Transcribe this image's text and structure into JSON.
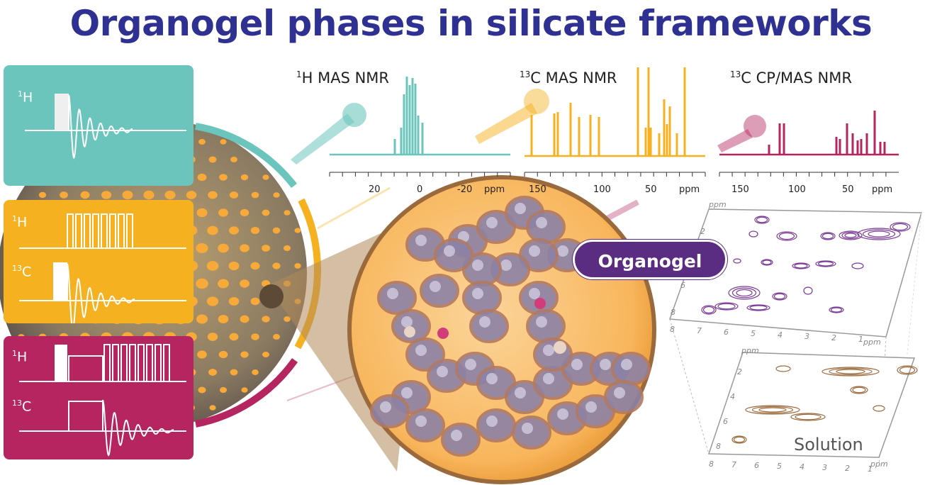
{
  "title": "Organogel phases in silicate frameworks",
  "colors": {
    "title": "#2e3192",
    "teal": "#6cc5bd",
    "orange": "#f5b120",
    "magenta": "#b5255f",
    "purple": "#5a2d82",
    "brown": "#9b6a3c"
  },
  "pulse_panels": [
    {
      "channels": [
        {
          "nucleus_sup": "1",
          "nucleus": "H"
        }
      ]
    },
    {
      "channels": [
        {
          "nucleus_sup": "1",
          "nucleus": "H"
        },
        {
          "nucleus_sup": "13",
          "nucleus": "C"
        }
      ]
    },
    {
      "channels": [
        {
          "nucleus_sup": "1",
          "nucleus": "H"
        },
        {
          "nucleus_sup": "13",
          "nucleus": "C"
        }
      ]
    }
  ],
  "spectra": [
    {
      "title_sup": "1",
      "title": "H MAS NMR",
      "ticks": [
        "20",
        "0",
        "-20",
        "ppm"
      ]
    },
    {
      "title_sup": "13",
      "title": "C MAS NMR",
      "ticks": [
        "150",
        "100",
        "50",
        "ppm"
      ]
    },
    {
      "title_sup": "13",
      "title": "C CP/MAS NMR",
      "ticks": [
        "150",
        "100",
        "50",
        "ppm"
      ]
    }
  ],
  "badge": "Organogel",
  "solution_label": "Solution",
  "plot2d": {
    "axis_unit": "ppm",
    "top_y_ticks": [
      "2",
      "4",
      "6",
      "8"
    ],
    "top_x_ticks": [
      "8",
      "7",
      "6",
      "5",
      "4",
      "3",
      "2",
      "1"
    ],
    "bottom_y_ticks": [
      "2",
      "4",
      "6",
      "8"
    ],
    "bottom_x_ticks": [
      "8",
      "7",
      "6",
      "5",
      "4",
      "3",
      "2",
      "1"
    ]
  }
}
